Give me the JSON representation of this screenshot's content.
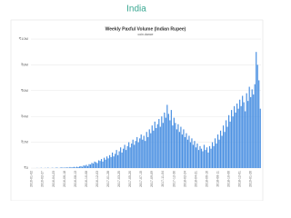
{
  "header": {
    "title": "India"
  },
  "chart_data": {
    "type": "bar",
    "title": "Weekly Paxful Volume (Indian Rupee)",
    "subtitle": "coin.dance",
    "color": "#4a90e2",
    "grid": true,
    "categories": [
      "2016-01-02",
      null,
      null,
      null,
      null,
      null,
      null,
      null,
      "2016-02-27",
      null,
      null,
      null,
      null,
      null,
      null,
      null,
      "2016-04-23",
      null,
      null,
      null,
      null,
      null,
      null,
      null,
      "2016-06-18",
      null,
      null,
      null,
      null,
      null,
      null,
      null,
      "2016-08-13",
      null,
      null,
      null,
      null,
      null,
      null,
      null,
      "2016-10-08",
      null,
      null,
      null,
      null,
      null,
      null,
      null,
      "2016-12-03",
      null,
      null,
      null,
      null,
      null,
      null,
      null,
      "2017-01-28",
      null,
      null,
      null,
      null,
      null,
      null,
      null,
      "2017-03-25",
      null,
      null,
      null,
      null,
      null,
      null,
      null,
      "2017-05-20",
      null,
      null,
      null,
      null,
      null,
      null,
      null,
      "2017-07-15",
      null,
      null,
      null,
      null,
      null,
      null,
      null,
      "2017-09-09",
      null,
      null,
      null,
      null,
      null,
      null,
      null,
      "2017-11-04",
      null,
      null,
      null,
      null,
      null,
      null,
      null,
      "2017-12-30",
      null,
      null,
      null,
      null,
      null,
      null,
      null,
      "2018-02-24",
      null,
      null,
      null,
      null,
      null,
      null,
      null,
      "2018-04-21",
      null,
      null,
      null,
      null,
      null,
      null,
      null,
      "2018-06-16",
      null,
      null,
      null,
      null,
      null,
      null,
      null,
      "2018-08-11",
      null,
      null,
      null,
      null,
      null,
      null,
      null,
      "2018-10-06",
      null,
      null,
      null,
      null,
      null,
      null,
      null,
      "2018-12-01",
      null,
      null,
      null,
      null,
      null,
      null,
      null,
      "2019-01-26",
      null,
      null,
      null,
      null,
      null,
      null,
      null
    ],
    "values": [
      0,
      0,
      0,
      0,
      10000,
      0,
      0,
      20000,
      0,
      0,
      15000,
      0,
      30000,
      0,
      0,
      20000,
      10000,
      0,
      40000,
      20000,
      0,
      30000,
      50000,
      20000,
      40000,
      30000,
      60000,
      20000,
      80000,
      40000,
      60000,
      90000,
      50000,
      100000,
      70000,
      120000,
      150000,
      100000,
      200000,
      180000,
      250000,
      150000,
      300000,
      280000,
      400000,
      350000,
      500000,
      450000,
      380000,
      600000,
      550000,
      700000,
      500000,
      800000,
      650000,
      900000,
      750000,
      1000000,
      850000,
      1200000,
      900000,
      1100000,
      1400000,
      1000000,
      1300000,
      1600000,
      1200000,
      1500000,
      1800000,
      1400000,
      1700000,
      2000000,
      1600000,
      1900000,
      2200000,
      1800000,
      2100000,
      2400000,
      2000000,
      2300000,
      2600000,
      2200000,
      2500000,
      2100000,
      2800000,
      2400000,
      3000000,
      2700000,
      3300000,
      2900000,
      3600000,
      3100000,
      3400000,
      3800000,
      3200000,
      4000000,
      3500000,
      4300000,
      3900000,
      4900000,
      4200000,
      3700000,
      4500000,
      3300000,
      3900000,
      3500000,
      3000000,
      3400000,
      2800000,
      3200000,
      2600000,
      3000000,
      2400000,
      2700000,
      2200000,
      2500000,
      2000000,
      2300000,
      1800000,
      2100000,
      1600000,
      1900000,
      1400000,
      1700000,
      1500000,
      1300000,
      1800000,
      1400000,
      1600000,
      1200000,
      1700000,
      1500000,
      2000000,
      1700000,
      2300000,
      1900000,
      2600000,
      2200000,
      2900000,
      2500000,
      3300000,
      2800000,
      3700000,
      3200000,
      4100000,
      3600000,
      4500000,
      4000000,
      4800000,
      4300000,
      5000000,
      4600000,
      5300000,
      4800000,
      5600000,
      5100000,
      4400000,
      5800000,
      5200000,
      6300000,
      5500000,
      6100000,
      5700000,
      6500000,
      9000000,
      8000000,
      6800000,
      4600000
    ],
    "ylim": [
      0,
      10000000
    ],
    "yticks": [
      {
        "value": 0,
        "label": "₹0"
      },
      {
        "value": 2000000,
        "label": "₹2M"
      },
      {
        "value": 4000000,
        "label": "₹4M"
      },
      {
        "value": 6000000,
        "label": "₹6M"
      },
      {
        "value": 8000000,
        "label": "₹8M"
      },
      {
        "value": 10000000,
        "label": "₹10M"
      }
    ]
  }
}
